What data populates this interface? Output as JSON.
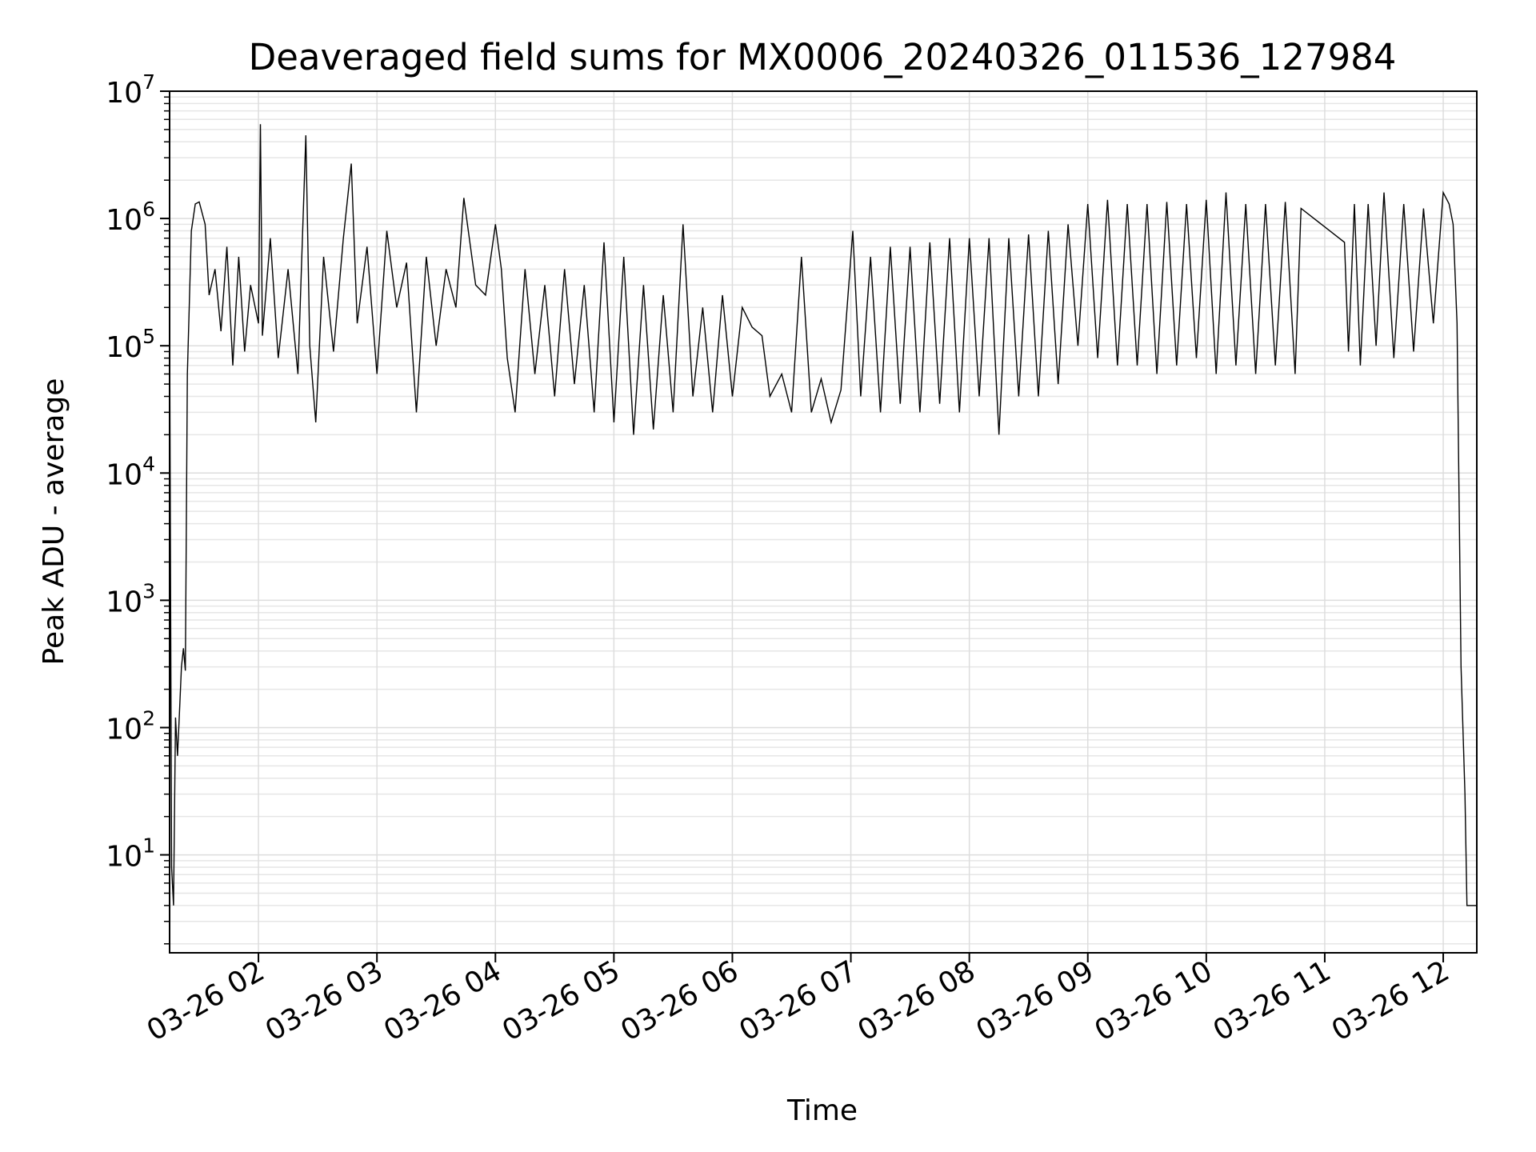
{
  "chart_data": {
    "type": "line",
    "title": "Deaveraged field sums for MX0006_20240326_011536_127984",
    "xlabel": "Time",
    "ylabel": "Peak ADU - average",
    "y_scale": "log",
    "ylim": [
      1.7,
      10000000
    ],
    "xlim": [
      "2024-03-26 01:15",
      "2024-03-26 12:17"
    ],
    "grid": true,
    "x_ticks": [
      "03-26 02",
      "03-26 03",
      "03-26 04",
      "03-26 05",
      "03-26 06",
      "03-26 07",
      "03-26 08",
      "03-26 09",
      "03-26 10",
      "03-26 11",
      "03-26 12"
    ],
    "x_tick_times": [
      "2024-03-26 02:00",
      "2024-03-26 03:00",
      "2024-03-26 04:00",
      "2024-03-26 05:00",
      "2024-03-26 06:00",
      "2024-03-26 07:00",
      "2024-03-26 08:00",
      "2024-03-26 09:00",
      "2024-03-26 10:00",
      "2024-03-26 11:00",
      "2024-03-26 12:00"
    ],
    "y_ticks": [
      {
        "base": "10",
        "exp": "1",
        "value": 10
      },
      {
        "base": "10",
        "exp": "2",
        "value": 100
      },
      {
        "base": "10",
        "exp": "3",
        "value": 1000
      },
      {
        "base": "10",
        "exp": "4",
        "value": 10000
      },
      {
        "base": "10",
        "exp": "5",
        "value": 100000
      },
      {
        "base": "10",
        "exp": "6",
        "value": 1000000
      },
      {
        "base": "10",
        "exp": "7",
        "value": 10000000
      }
    ],
    "series": [
      {
        "color": "#000000",
        "points": [
          [
            "2024-03-26 01:15",
            160000
          ],
          [
            "2024-03-26 01:16",
            8
          ],
          [
            "2024-03-26 01:17",
            4
          ],
          [
            "2024-03-26 01:18",
            120
          ],
          [
            "2024-03-26 01:19",
            60
          ],
          [
            "2024-03-26 01:20",
            130
          ],
          [
            "2024-03-26 01:21",
            300
          ],
          [
            "2024-03-26 01:22",
            420
          ],
          [
            "2024-03-26 01:23",
            280
          ],
          [
            "2024-03-26 01:24",
            60000
          ],
          [
            "2024-03-26 01:26",
            800000
          ],
          [
            "2024-03-26 01:28",
            1300000
          ],
          [
            "2024-03-26 01:30",
            1350000
          ],
          [
            "2024-03-26 01:33",
            900000
          ],
          [
            "2024-03-26 01:35",
            250000
          ],
          [
            "2024-03-26 01:38",
            400000
          ],
          [
            "2024-03-26 01:41",
            130000
          ],
          [
            "2024-03-26 01:44",
            600000
          ],
          [
            "2024-03-26 01:47",
            70000
          ],
          [
            "2024-03-26 01:50",
            500000
          ],
          [
            "2024-03-26 01:53",
            90000
          ],
          [
            "2024-03-26 01:56",
            300000
          ],
          [
            "2024-03-26 02:00",
            150000
          ],
          [
            "2024-03-26 02:01",
            5500000
          ],
          [
            "2024-03-26 02:02",
            120000
          ],
          [
            "2024-03-26 02:06",
            700000
          ],
          [
            "2024-03-26 02:10",
            80000
          ],
          [
            "2024-03-26 02:15",
            400000
          ],
          [
            "2024-03-26 02:20",
            60000
          ],
          [
            "2024-03-26 02:24",
            4500000
          ],
          [
            "2024-03-26 02:26",
            100000
          ],
          [
            "2024-03-26 02:29",
            25000
          ],
          [
            "2024-03-26 02:33",
            500000
          ],
          [
            "2024-03-26 02:38",
            90000
          ],
          [
            "2024-03-26 02:43",
            700000
          ],
          [
            "2024-03-26 02:47",
            2700000
          ],
          [
            "2024-03-26 02:50",
            150000
          ],
          [
            "2024-03-26 02:55",
            600000
          ],
          [
            "2024-03-26 03:00",
            60000
          ],
          [
            "2024-03-26 03:05",
            800000
          ],
          [
            "2024-03-26 03:10",
            200000
          ],
          [
            "2024-03-26 03:15",
            450000
          ],
          [
            "2024-03-26 03:20",
            30000
          ],
          [
            "2024-03-26 03:25",
            500000
          ],
          [
            "2024-03-26 03:30",
            100000
          ],
          [
            "2024-03-26 03:35",
            400000
          ],
          [
            "2024-03-26 03:40",
            200000
          ],
          [
            "2024-03-26 03:44",
            1450000
          ],
          [
            "2024-03-26 03:50",
            300000
          ],
          [
            "2024-03-26 03:55",
            250000
          ],
          [
            "2024-03-26 04:00",
            900000
          ],
          [
            "2024-03-26 04:03",
            400000
          ],
          [
            "2024-03-26 04:06",
            80000
          ],
          [
            "2024-03-26 04:10",
            30000
          ],
          [
            "2024-03-26 04:15",
            400000
          ],
          [
            "2024-03-26 04:20",
            60000
          ],
          [
            "2024-03-26 04:25",
            300000
          ],
          [
            "2024-03-26 04:30",
            40000
          ],
          [
            "2024-03-26 04:35",
            400000
          ],
          [
            "2024-03-26 04:40",
            50000
          ],
          [
            "2024-03-26 04:45",
            300000
          ],
          [
            "2024-03-26 04:50",
            30000
          ],
          [
            "2024-03-26 04:55",
            650000
          ],
          [
            "2024-03-26 05:00",
            25000
          ],
          [
            "2024-03-26 05:05",
            500000
          ],
          [
            "2024-03-26 05:10",
            20000
          ],
          [
            "2024-03-26 05:15",
            300000
          ],
          [
            "2024-03-26 05:20",
            22000
          ],
          [
            "2024-03-26 05:25",
            250000
          ],
          [
            "2024-03-26 05:30",
            30000
          ],
          [
            "2024-03-26 05:35",
            900000
          ],
          [
            "2024-03-26 05:40",
            40000
          ],
          [
            "2024-03-26 05:45",
            200000
          ],
          [
            "2024-03-26 05:50",
            30000
          ],
          [
            "2024-03-26 05:55",
            250000
          ],
          [
            "2024-03-26 06:00",
            40000
          ],
          [
            "2024-03-26 06:05",
            200000
          ],
          [
            "2024-03-26 06:10",
            140000
          ],
          [
            "2024-03-26 06:15",
            120000
          ],
          [
            "2024-03-26 06:19",
            40000
          ],
          [
            "2024-03-26 06:25",
            60000
          ],
          [
            "2024-03-26 06:30",
            30000
          ],
          [
            "2024-03-26 06:35",
            500000
          ],
          [
            "2024-03-26 06:40",
            30000
          ],
          [
            "2024-03-26 06:45",
            55000
          ],
          [
            "2024-03-26 06:50",
            25000
          ],
          [
            "2024-03-26 06:55",
            45000
          ],
          [
            "2024-03-26 07:01",
            800000
          ],
          [
            "2024-03-26 07:05",
            40000
          ],
          [
            "2024-03-26 07:10",
            500000
          ],
          [
            "2024-03-26 07:15",
            30000
          ],
          [
            "2024-03-26 07:20",
            600000
          ],
          [
            "2024-03-26 07:25",
            35000
          ],
          [
            "2024-03-26 07:30",
            600000
          ],
          [
            "2024-03-26 07:35",
            30000
          ],
          [
            "2024-03-26 07:40",
            650000
          ],
          [
            "2024-03-26 07:45",
            35000
          ],
          [
            "2024-03-26 07:50",
            700000
          ],
          [
            "2024-03-26 07:55",
            30000
          ],
          [
            "2024-03-26 08:00",
            700000
          ],
          [
            "2024-03-26 08:05",
            40000
          ],
          [
            "2024-03-26 08:10",
            700000
          ],
          [
            "2024-03-26 08:15",
            20000
          ],
          [
            "2024-03-26 08:20",
            700000
          ],
          [
            "2024-03-26 08:25",
            40000
          ],
          [
            "2024-03-26 08:30",
            750000
          ],
          [
            "2024-03-26 08:35",
            40000
          ],
          [
            "2024-03-26 08:40",
            800000
          ],
          [
            "2024-03-26 08:45",
            50000
          ],
          [
            "2024-03-26 08:50",
            900000
          ],
          [
            "2024-03-26 08:55",
            100000
          ],
          [
            "2024-03-26 09:00",
            1300000
          ],
          [
            "2024-03-26 09:05",
            80000
          ],
          [
            "2024-03-26 09:10",
            1400000
          ],
          [
            "2024-03-26 09:15",
            70000
          ],
          [
            "2024-03-26 09:20",
            1300000
          ],
          [
            "2024-03-26 09:25",
            70000
          ],
          [
            "2024-03-26 09:30",
            1300000
          ],
          [
            "2024-03-26 09:35",
            60000
          ],
          [
            "2024-03-26 09:40",
            1350000
          ],
          [
            "2024-03-26 09:45",
            70000
          ],
          [
            "2024-03-26 09:50",
            1300000
          ],
          [
            "2024-03-26 09:55",
            80000
          ],
          [
            "2024-03-26 10:00",
            1400000
          ],
          [
            "2024-03-26 10:05",
            60000
          ],
          [
            "2024-03-26 10:10",
            1600000
          ],
          [
            "2024-03-26 10:15",
            70000
          ],
          [
            "2024-03-26 10:20",
            1300000
          ],
          [
            "2024-03-26 10:25",
            60000
          ],
          [
            "2024-03-26 10:30",
            1300000
          ],
          [
            "2024-03-26 10:35",
            70000
          ],
          [
            "2024-03-26 10:40",
            1350000
          ],
          [
            "2024-03-26 10:45",
            60000
          ],
          [
            "2024-03-26 10:48",
            1200000
          ],
          [
            "2024-03-26 11:10",
            650000
          ],
          [
            "2024-03-26 11:12",
            90000
          ],
          [
            "2024-03-26 11:15",
            1300000
          ],
          [
            "2024-03-26 11:18",
            70000
          ],
          [
            "2024-03-26 11:22",
            1300000
          ],
          [
            "2024-03-26 11:26",
            100000
          ],
          [
            "2024-03-26 11:30",
            1600000
          ],
          [
            "2024-03-26 11:35",
            80000
          ],
          [
            "2024-03-26 11:40",
            1300000
          ],
          [
            "2024-03-26 11:45",
            90000
          ],
          [
            "2024-03-26 11:50",
            1200000
          ],
          [
            "2024-03-26 11:55",
            150000
          ],
          [
            "2024-03-26 12:00",
            1600000
          ],
          [
            "2024-03-26 12:03",
            1300000
          ],
          [
            "2024-03-26 12:05",
            900000
          ],
          [
            "2024-03-26 12:07",
            150000
          ],
          [
            "2024-03-26 12:09",
            300
          ],
          [
            "2024-03-26 12:11",
            30
          ],
          [
            "2024-03-26 12:12",
            4
          ],
          [
            "2024-03-26 12:15",
            4
          ],
          [
            "2024-03-26 12:17",
            4
          ]
        ]
      }
    ]
  }
}
